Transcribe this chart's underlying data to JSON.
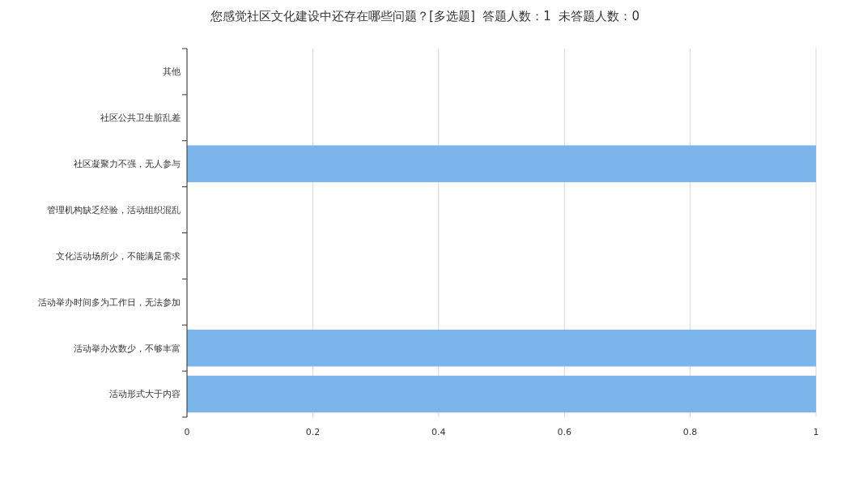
{
  "chart_data": {
    "type": "bar",
    "orientation": "horizontal",
    "title": "您感觉社区文化建设中还存在哪些问题？[多选题]  答题人数：1  未答题人数：0",
    "categories": [
      "其他",
      "社区公共卫生脏乱差",
      "社区凝聚力不强，无人参与",
      "管理机构缺乏经验，活动组织混乱",
      "文化活动场所少，不能满足需求",
      "活动举办时间多为工作日，无法参加",
      "活动举办次数少，不够丰富",
      "活动形式大于内容"
    ],
    "values": [
      0,
      0,
      1,
      0,
      0,
      0,
      1,
      1
    ],
    "color": "#7cb5ec",
    "xlim": [
      0,
      1
    ],
    "xticks": [
      0,
      0.2,
      0.4,
      0.6,
      0.8,
      1
    ],
    "grid": "x"
  }
}
